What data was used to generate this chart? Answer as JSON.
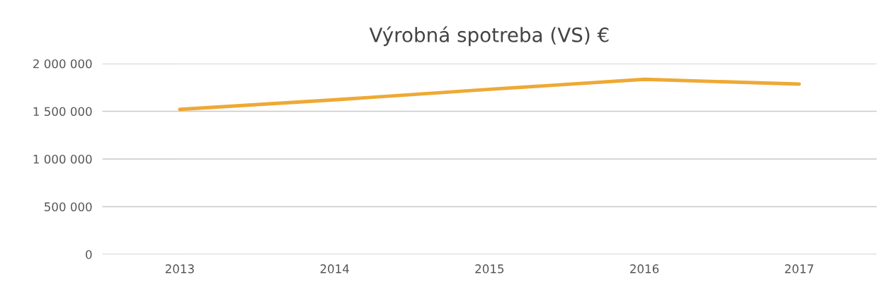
{
  "chart_data": {
    "type": "line",
    "title": "Výrobná spotreba (VS) €",
    "categories": [
      "2013",
      "2014",
      "2015",
      "2016",
      "2017"
    ],
    "series": [
      {
        "color": "#eea935",
        "values": [
          1520000,
          1620000,
          1730000,
          1835000,
          1785000
        ]
      }
    ],
    "ylim": [
      0,
      2000000
    ],
    "yticks": [
      0,
      {
        "value": 500000,
        "label": "500 000"
      },
      {
        "value": 1000000,
        "label": "1 000 000"
      },
      {
        "value": 1500000,
        "label": "1 500 000"
      },
      {
        "value": 2000000,
        "label": "2 000 000"
      }
    ],
    "grid": "y",
    "marker": "none",
    "line_style": "solid"
  }
}
